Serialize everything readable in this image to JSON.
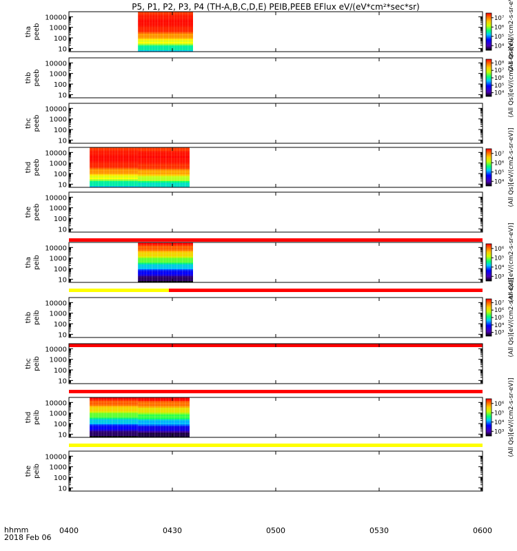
{
  "title": "P5, P1, P2, P3, P4 (TH-A,B,C,D,E) PEIB,PEEB EFlux eV/(eV*cm²*sec*sr)",
  "footer": {
    "hhmm": "hhmm",
    "date": "2018 Feb 06"
  },
  "colors": {
    "red_bar": "#ff0000",
    "yellow_bar": "#ffff00",
    "axis": "#000000"
  },
  "chart_data": {
    "type": "heatmap",
    "x_axis": {
      "range": [
        "0400",
        "0600"
      ],
      "ticks": [
        "0400",
        "0430",
        "0500",
        "0530",
        "0600"
      ]
    },
    "y_axis": {
      "scale": "log",
      "range": [
        5,
        30000
      ],
      "ticks": [
        "10",
        "100",
        "1000",
        "10000"
      ]
    },
    "panels": [
      {
        "probe": "tha",
        "instrument": "peeb",
        "label": [
          "tha",
          "peeb"
        ],
        "data_intervals": [
          {
            "start": "0420",
            "end": "0436"
          }
        ],
        "spectrum": "warm",
        "colorbar": {
          "ticks": [
            "10⁴",
            "10⁵",
            "10⁶",
            "10⁷"
          ],
          "label": "(All Qs)[eV/(cm2-s-sr-eV)]"
        }
      },
      {
        "probe": "thb",
        "instrument": "peeb",
        "label": [
          "thb",
          "peeb"
        ],
        "data_intervals": [],
        "colorbar": {
          "ticks": [
            "10⁴",
            "10⁵",
            "10⁶",
            "10⁷",
            "10⁸"
          ],
          "label": "(All Qs)[eV/(cm2-s-sr-eV)]"
        }
      },
      {
        "probe": "thc",
        "instrument": "peeb",
        "label": [
          "thc",
          "peeb"
        ],
        "data_intervals": []
      },
      {
        "probe": "thd",
        "instrument": "peeb",
        "label": [
          "thd",
          "peeb"
        ],
        "data_intervals": [
          {
            "start": "0406",
            "end": "0420"
          },
          {
            "start": "0420",
            "end": "0435"
          }
        ],
        "spectrum": "warm",
        "colorbar": {
          "ticks": [
            "10⁴",
            "10⁵",
            "10⁶",
            "10⁷"
          ],
          "label": "(All Qs)[eV/(cm2-s-sr-eV)]"
        }
      },
      {
        "probe": "the",
        "instrument": "peeb",
        "label": [
          "the",
          "peeb"
        ],
        "data_intervals": [],
        "status_bar": {
          "segments": [
            {
              "from": "0400",
              "to": "0600",
              "color": "red"
            }
          ]
        }
      },
      {
        "probe": "tha",
        "instrument": "peib",
        "label": [
          "tha",
          "peib"
        ],
        "data_intervals": [
          {
            "start": "0420",
            "end": "0436"
          }
        ],
        "spectrum": "full",
        "colorbar": {
          "ticks": [
            "10³",
            "10⁴",
            "10⁵",
            "10⁶"
          ],
          "label": "(All Qs)[eV/(cm2-s-sr-eV)]"
        },
        "status_bar": {
          "segments": [
            {
              "from": "0400",
              "to": "0429",
              "color": "yellow"
            },
            {
              "from": "0429",
              "to": "0600",
              "color": "red"
            }
          ]
        }
      },
      {
        "probe": "thb",
        "instrument": "peib",
        "label": [
          "thb",
          "peib"
        ],
        "data_intervals": [],
        "colorbar": {
          "ticks": [
            "10³",
            "10⁴",
            "10⁵",
            "10⁶",
            "10⁷"
          ],
          "label": "(All Qs)[eV/(cm2-s-sr-eV)]"
        },
        "status_bar": {
          "segments": [
            {
              "from": "0400",
              "to": "0600",
              "color": "red"
            }
          ]
        }
      },
      {
        "probe": "thc",
        "instrument": "peib",
        "label": [
          "thc",
          "peib"
        ],
        "data_intervals": [],
        "status_bar": {
          "segments": [
            {
              "from": "0400",
              "to": "0600",
              "color": "red"
            }
          ]
        }
      },
      {
        "probe": "thd",
        "instrument": "peib",
        "label": [
          "thd",
          "peib"
        ],
        "data_intervals": [
          {
            "start": "0406",
            "end": "0420"
          },
          {
            "start": "0420",
            "end": "0435"
          }
        ],
        "spectrum": "full",
        "colorbar": {
          "ticks": [
            "10³",
            "10⁴",
            "10⁵",
            "10⁶"
          ],
          "label": "(All Qs)[eV/(cm2-s-sr-eV)]"
        },
        "status_bar": {
          "segments": [
            {
              "from": "0400",
              "to": "0600",
              "color": "yellow"
            }
          ]
        }
      },
      {
        "probe": "the",
        "instrument": "peib",
        "label": [
          "the",
          "peib"
        ],
        "data_intervals": []
      }
    ]
  }
}
